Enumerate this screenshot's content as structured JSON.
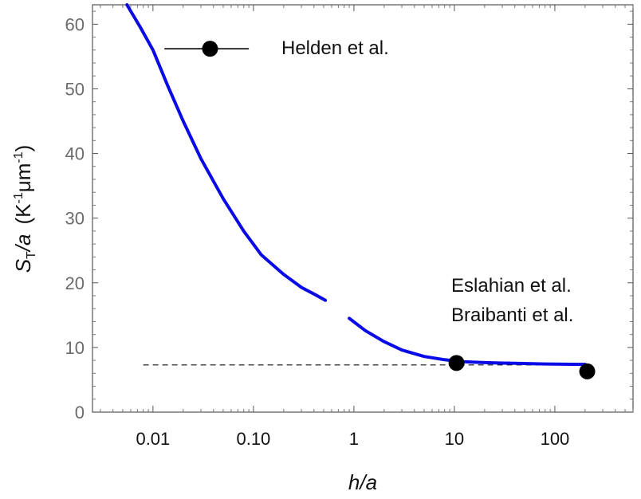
{
  "chart_data": {
    "type": "line",
    "x_scale": "log",
    "xlabel": "h/a",
    "ylabel": {
      "main": "S",
      "main_sub": "T",
      "rest": "/a",
      "units_prefix": "(K",
      "units_sup1": "-1",
      "units_mid": "μm",
      "units_sup2": "-1",
      "units_suffix": ")"
    },
    "xlim": [
      0.0025,
      600
    ],
    "ylim": [
      0,
      63
    ],
    "x_ticks": [
      {
        "value": 0.01,
        "label": "0.01"
      },
      {
        "value": 0.1,
        "label": "0.10"
      },
      {
        "value": 1,
        "label": "1"
      },
      {
        "value": 10,
        "label": "10"
      },
      {
        "value": 100,
        "label": "100"
      }
    ],
    "y_ticks": [
      {
        "value": 0,
        "label": "0"
      },
      {
        "value": 10,
        "label": "10"
      },
      {
        "value": 20,
        "label": "20"
      },
      {
        "value": 30,
        "label": "30"
      },
      {
        "value": 40,
        "label": "40"
      },
      {
        "value": 50,
        "label": "50"
      },
      {
        "value": 60,
        "label": "60"
      }
    ],
    "curve": {
      "color": "#0a0ae6",
      "segments": [
        [
          [
            0.0055,
            63
          ],
          [
            0.0075,
            59.5
          ],
          [
            0.01,
            56
          ],
          [
            0.014,
            50.5
          ],
          [
            0.02,
            45
          ],
          [
            0.03,
            39.2
          ],
          [
            0.05,
            33
          ],
          [
            0.08,
            28
          ],
          [
            0.12,
            24.3
          ],
          [
            0.2,
            21.3
          ],
          [
            0.3,
            19.3
          ],
          [
            0.42,
            18.1
          ],
          [
            0.52,
            17.3
          ]
        ],
        [
          [
            0.9,
            14.5
          ],
          [
            1.3,
            12.6
          ],
          [
            2,
            10.9
          ],
          [
            3,
            9.6
          ],
          [
            5,
            8.6
          ],
          [
            8,
            8.1
          ],
          [
            12,
            7.8
          ],
          [
            20,
            7.65
          ],
          [
            40,
            7.55
          ],
          [
            80,
            7.45
          ],
          [
            150,
            7.4
          ],
          [
            200,
            7.38
          ]
        ]
      ]
    },
    "asymptote": {
      "y": 7.3,
      "x_from": 0.008,
      "x_to": 200
    },
    "points": [
      {
        "x": 0.037,
        "y": 56.2,
        "xerr": [
          0.013,
          0.09
        ],
        "label": "Helden et al."
      },
      {
        "x": 10.5,
        "y": 7.6
      },
      {
        "x": 210,
        "y": 6.3
      }
    ],
    "annotations": [
      "Eslahian et al.",
      "Braibanti et al."
    ]
  }
}
